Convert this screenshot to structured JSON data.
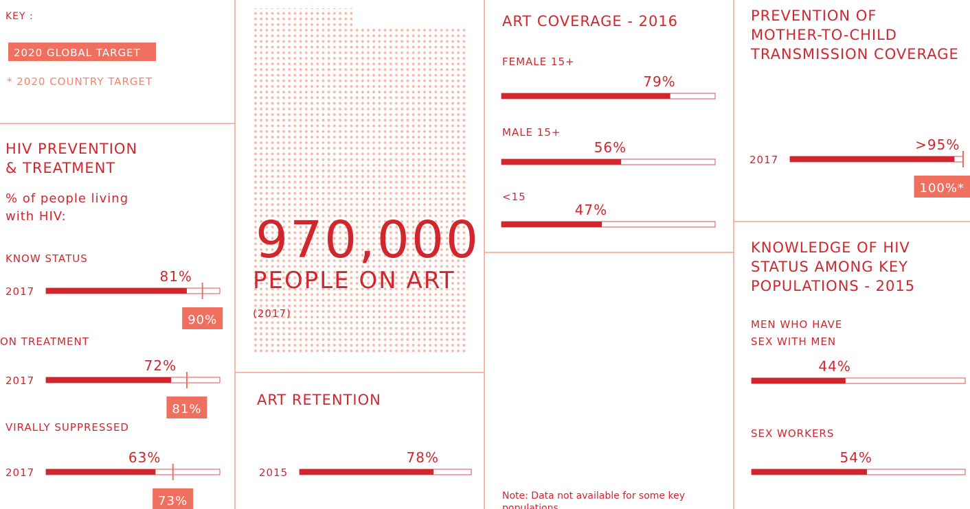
{
  "key": {
    "title": "KEY :",
    "global_target": "2020 GLOBAL TARGET",
    "country_target": "* 2020 COUNTRY TARGET"
  },
  "hiv": {
    "title": [
      "HIV PREVENTION",
      "& TREATMENT"
    ],
    "subtitle": [
      "% of people living",
      "with HIV:"
    ],
    "items": [
      {
        "name": "KNOW STATUS",
        "year": "2017",
        "value": 81,
        "value_label": "81%",
        "target": 90,
        "target_label": "90%"
      },
      {
        "name": "ON TREATMENT",
        "year": "2017",
        "value": 72,
        "value_label": "72%",
        "target": 81,
        "target_label": "81%"
      },
      {
        "name": "VIRALLY SUPPRESSED",
        "year": "2017",
        "value": 63,
        "value_label": "63%",
        "target": 73,
        "target_label": "73%"
      }
    ]
  },
  "people_on_art": {
    "value": "970,000",
    "label": "PEOPLE ON ART",
    "year": "(2017)"
  },
  "art_retention": {
    "title": "ART RETENTION",
    "year": "2015",
    "value": 78,
    "value_label": "78%"
  },
  "art_coverage": {
    "title": "ART COVERAGE - 2016",
    "items": [
      {
        "name": "FEMALE 15+",
        "value": 79,
        "value_label": "79%"
      },
      {
        "name": "MALE 15+",
        "value": 56,
        "value_label": "56%"
      },
      {
        "name": "<15",
        "value": 47,
        "value_label": "47%"
      }
    ]
  },
  "note": [
    "Note: Data not available for some key",
    "populations"
  ],
  "pmtct": {
    "title": [
      "PREVENTION OF",
      "MOTHER-TO-CHILD",
      "TRANSMISSION COVERAGE"
    ],
    "year": "2017",
    "value": 95,
    "value_label": ">95%",
    "target": 100,
    "target_label": "100%*"
  },
  "key_populations": {
    "title": [
      "KNOWLEDGE OF HIV",
      "STATUS AMONG KEY",
      "POPULATIONS - 2015"
    ],
    "items": [
      {
        "name": [
          "MEN WHO HAVE",
          "SEX WITH MEN"
        ],
        "value": 44,
        "value_label": "44%"
      },
      {
        "name": [
          "SEX WORKERS"
        ],
        "value": 54,
        "value_label": "54%"
      }
    ]
  }
}
